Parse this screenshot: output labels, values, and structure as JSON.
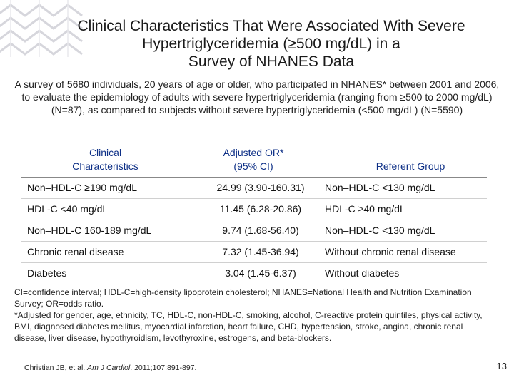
{
  "slide": {
    "title_lines": [
      "Clinical Characteristics That Were Associated With Severe",
      "Hypertriglyceridemia (≥500 mg/dL) in a",
      "Survey of NHANES Data"
    ],
    "intro": "A survey of 5680 individuals, 20 years of age or older, who participated in NHANES* between 2001 and 2006, to evaluate the epidemiology of adults with severe hypertriglyceridemia (ranging from ≥500 to 2000 mg/dL) (N=87), as compared to subjects without severe hypertriglyceridemia (<500 mg/dL) (N=5590)",
    "accent_color": "#0d2f86"
  },
  "table": {
    "headers": {
      "characteristic": [
        "Clinical",
        "Characteristics"
      ],
      "or": [
        "Adjusted OR*",
        "(95% CI)"
      ],
      "referent": "Referent Group"
    },
    "rows": [
      {
        "characteristic": "Non–HDL-C ≥190 mg/dL",
        "or": "24.99 (3.90-160.31)",
        "referent": "Non–HDL-C <130 mg/dL"
      },
      {
        "characteristic": "HDL-C <40 mg/dL",
        "or": "11.45 (6.28-20.86)",
        "referent": "HDL-C ≥40 mg/dL"
      },
      {
        "characteristic": "Non–HDL-C 160-189 mg/dL",
        "or": "9.74 (1.68-56.40)",
        "referent": "Non–HDL-C <130 mg/dL"
      },
      {
        "characteristic": "Chronic renal disease",
        "or": "7.32 (1.45-36.94)",
        "referent": "Without chronic renal disease"
      },
      {
        "characteristic": "Diabetes",
        "or": "3.04 (1.45-6.37)",
        "referent": "Without diabetes"
      }
    ]
  },
  "footnotes": {
    "abbreviations": "CI=confidence interval; HDL-C=high-density lipoprotein cholesterol; NHANES=National Health and Nutrition Examination Survey; OR=odds ratio.",
    "adjustment": "*Adjusted for gender, age, ethnicity, TC, HDL-C, non-HDL-C, smoking, alcohol, C-reactive protein quintiles, physical activity, BMI, diagnosed diabetes mellitus, myocardial infarction, heart failure, CHD, hypertension, stroke, angina, chronic renal disease, liver disease, hypothyroidism, levothyroxine, estrogens, and beta-blockers."
  },
  "citation": {
    "authors": "Christian JB, et al.",
    "journal": "Am J Cardiol",
    "details": ". 2011;107:891-897."
  },
  "page_number": "13"
}
